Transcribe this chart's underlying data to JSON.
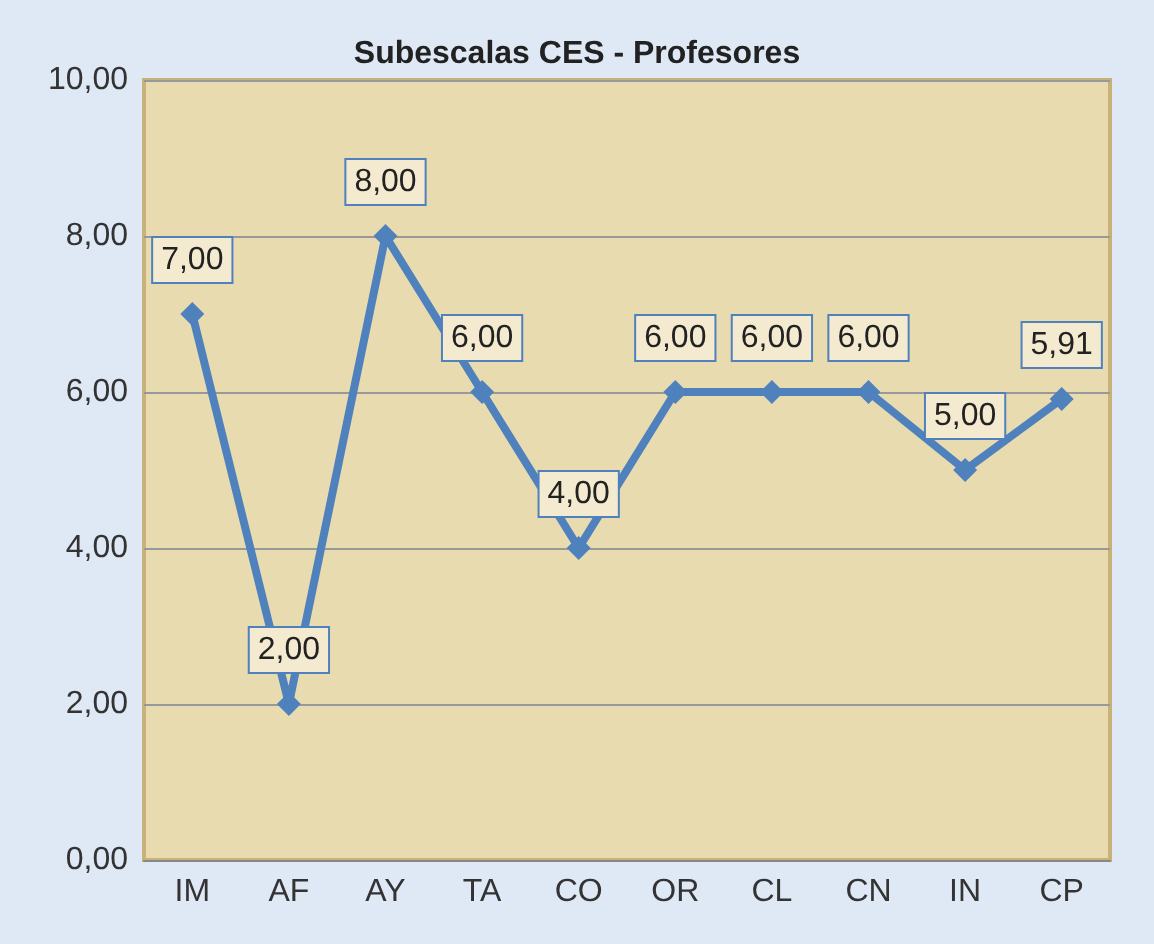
{
  "chart_data": {
    "type": "line",
    "title": "Subescalas CES - Profesores",
    "categories": [
      "IM",
      "AF",
      "AY",
      "TA",
      "CO",
      "OR",
      "CL",
      "CN",
      "IN",
      "CP"
    ],
    "series": [
      {
        "color": "#4f81bd",
        "values": [
          7,
          2,
          8,
          6,
          4,
          6,
          6,
          6,
          5,
          5.91
        ],
        "value_labels": [
          "7,00",
          "2,00",
          "8,00",
          "6,00",
          "4,00",
          "6,00",
          "6,00",
          "6,00",
          "5,00",
          "5,91"
        ]
      }
    ],
    "ylim": [
      0,
      10
    ],
    "yticks": [
      {
        "value": 0,
        "label": "0,00"
      },
      {
        "value": 2,
        "label": "2,00"
      },
      {
        "value": 4,
        "label": "4,00"
      },
      {
        "value": 6,
        "label": "6,00"
      },
      {
        "value": 8,
        "label": "8,00"
      },
      {
        "value": 10,
        "label": "10,00"
      }
    ],
    "grid": "y",
    "marker": "diamond",
    "line_style": "solid"
  }
}
